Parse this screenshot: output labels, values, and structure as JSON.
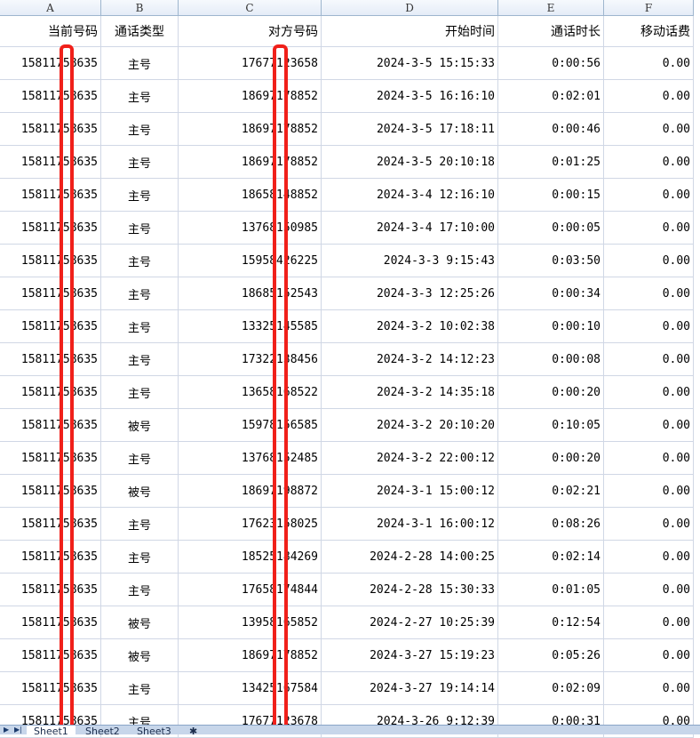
{
  "columns": [
    "A",
    "B",
    "C",
    "D",
    "E",
    "F"
  ],
  "headers": [
    "当前号码",
    "通话类型",
    "对方号码",
    "开始时间",
    "通话时长",
    "移动话费"
  ],
  "rows": [
    [
      "15811758635",
      "主号",
      "17677123658",
      "2024-3-5 15:15:33",
      "0:00:56",
      "0.00"
    ],
    [
      "15811758635",
      "主号",
      "18697178852",
      "2024-3-5 16:16:10",
      "0:02:01",
      "0.00"
    ],
    [
      "15811758635",
      "主号",
      "18697178852",
      "2024-3-5 17:18:11",
      "0:00:46",
      "0.00"
    ],
    [
      "15811758635",
      "主号",
      "18697178852",
      "2024-3-5 20:10:18",
      "0:01:25",
      "0.00"
    ],
    [
      "15811758635",
      "主号",
      "18658148852",
      "2024-3-4 12:16:10",
      "0:00:15",
      "0.00"
    ],
    [
      "15811758635",
      "主号",
      "13768150985",
      "2024-3-4 17:10:00",
      "0:00:05",
      "0.00"
    ],
    [
      "15811758635",
      "主号",
      "15958426225",
      "2024-3-3 9:15:43",
      "0:03:50",
      "0.00"
    ],
    [
      "15811758635",
      "主号",
      "18685152543",
      "2024-3-3 12:25:26",
      "0:00:34",
      "0.00"
    ],
    [
      "15811758635",
      "主号",
      "13325145585",
      "2024-3-2 10:02:38",
      "0:00:10",
      "0.00"
    ],
    [
      "15811758635",
      "主号",
      "17322138456",
      "2024-3-2 14:12:23",
      "0:00:08",
      "0.00"
    ],
    [
      "15811758635",
      "主号",
      "13658168522",
      "2024-3-2 14:35:18",
      "0:00:20",
      "0.00"
    ],
    [
      "15811758635",
      "被号",
      "15978156585",
      "2024-3-2 20:10:20",
      "0:10:05",
      "0.00"
    ],
    [
      "15811758635",
      "主号",
      "13768152485",
      "2024-3-2 22:00:12",
      "0:00:20",
      "0.00"
    ],
    [
      "15811758635",
      "被号",
      "18697198872",
      "2024-3-1 15:00:12",
      "0:02:21",
      "0.00"
    ],
    [
      "15811758635",
      "主号",
      "17623158025",
      "2024-3-1 16:00:12",
      "0:08:26",
      "0.00"
    ],
    [
      "15811758635",
      "主号",
      "18525184269",
      "2024-2-28 14:00:25",
      "0:02:14",
      "0.00"
    ],
    [
      "15811758635",
      "主号",
      "17658174844",
      "2024-2-28 15:30:33",
      "0:01:05",
      "0.00"
    ],
    [
      "15811758635",
      "被号",
      "13958165852",
      "2024-2-27 10:25:39",
      "0:12:54",
      "0.00"
    ],
    [
      "15811758635",
      "被号",
      "18697178852",
      "2024-3-27 15:19:23",
      "0:05:26",
      "0.00"
    ],
    [
      "15811758635",
      "主号",
      "13425167584",
      "2024-3-27 19:14:14",
      "0:02:09",
      "0.00"
    ],
    [
      "15811758635",
      "主号",
      "17677123678",
      "2024-3-26 9:12:39",
      "0:00:31",
      "0.00"
    ]
  ],
  "sheet_tabs": [
    "Sheet1",
    "Sheet2",
    "Sheet3"
  ],
  "colors": {
    "redaction": "#f0201a",
    "grid": "#d0d7e5",
    "header_bg": "#e4ecf7"
  }
}
